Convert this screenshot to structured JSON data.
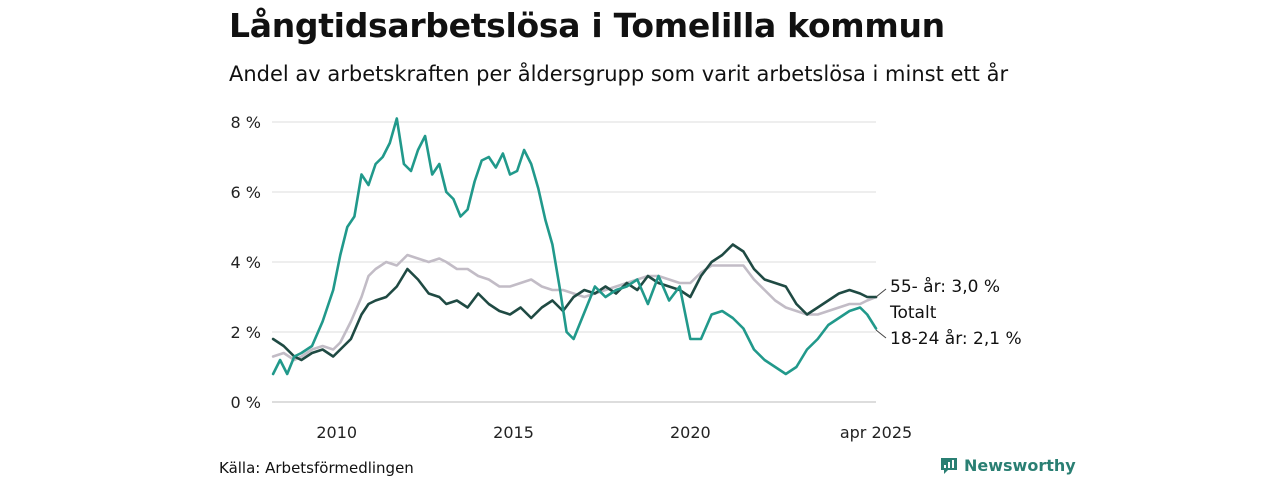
{
  "header": {
    "title": "Långtidsarbetslösa i Tomelilla kommun",
    "subtitle": "Andel av arbetskraften per åldersgrupp som varit arbetslösa i minst ett år"
  },
  "footer": {
    "source": "Källa: Arbetsförmedlingen",
    "brand": "Newsworthy"
  },
  "colors": {
    "youth": "#21998b",
    "older": "#1f4a43",
    "total": "#c2bcc6",
    "grid": "#dddddd",
    "brand": "#2a7f73"
  },
  "chart_data": {
    "type": "line",
    "title": "Långtidsarbetslösa i Tomelilla kommun",
    "subtitle": "Andel av arbetskraften per åldersgrupp som varit arbetslösa i minst ett år",
    "xlabel": "",
    "ylabel": "",
    "xlim": [
      2008.17,
      2025.25
    ],
    "ylim": [
      0,
      8
    ],
    "y_ticks": [
      0,
      2,
      4,
      6,
      8
    ],
    "y_tick_labels": [
      "0 %",
      "2 %",
      "4 %",
      "6 %",
      "8 %"
    ],
    "x_ticks": [
      2010,
      2015,
      2020,
      2025.25
    ],
    "x_tick_labels": [
      "2010",
      "2015",
      "2020",
      "apr 2025"
    ],
    "grid": true,
    "legend": "end-labels-right",
    "end_labels": [
      "55- år: 3,0 %",
      "Totalt",
      "18-24 år: 2,1 %"
    ],
    "series": [
      {
        "key": "total",
        "color": "#c2bcc6",
        "x": [
          2008.2,
          2008.5,
          2008.8,
          2009.0,
          2009.3,
          2009.6,
          2009.9,
          2010.1,
          2010.4,
          2010.7,
          2010.9,
          2011.1,
          2011.4,
          2011.7,
          2012.0,
          2012.3,
          2012.6,
          2012.9,
          2013.1,
          2013.4,
          2013.7,
          2014.0,
          2014.3,
          2014.6,
          2014.9,
          2015.2,
          2015.5,
          2015.8,
          2016.1,
          2016.4,
          2016.7,
          2017.0,
          2017.3,
          2017.6,
          2017.9,
          2018.2,
          2018.5,
          2018.8,
          2019.1,
          2019.4,
          2019.7,
          2020.0,
          2020.3,
          2020.6,
          2020.9,
          2021.2,
          2021.5,
          2021.8,
          2022.1,
          2022.4,
          2022.7,
          2023.0,
          2023.3,
          2023.6,
          2023.9,
          2024.2,
          2024.5,
          2024.8,
          2025.0,
          2025.25
        ],
        "values": [
          1.3,
          1.4,
          1.2,
          1.3,
          1.5,
          1.6,
          1.5,
          1.7,
          2.3,
          3.0,
          3.6,
          3.8,
          4.0,
          3.9,
          4.2,
          4.1,
          4.0,
          4.1,
          4.0,
          3.8,
          3.8,
          3.6,
          3.5,
          3.3,
          3.3,
          3.4,
          3.5,
          3.3,
          3.2,
          3.2,
          3.1,
          3.0,
          3.1,
          3.2,
          3.3,
          3.4,
          3.5,
          3.6,
          3.6,
          3.5,
          3.4,
          3.4,
          3.7,
          3.9,
          3.9,
          3.9,
          3.9,
          3.5,
          3.2,
          2.9,
          2.7,
          2.6,
          2.5,
          2.5,
          2.6,
          2.7,
          2.8,
          2.8,
          2.9,
          3.0
        ]
      },
      {
        "key": "older",
        "color": "#1f4a43",
        "x": [
          2008.2,
          2008.5,
          2008.8,
          2009.0,
          2009.3,
          2009.6,
          2009.9,
          2010.1,
          2010.4,
          2010.7,
          2010.9,
          2011.1,
          2011.4,
          2011.7,
          2012.0,
          2012.3,
          2012.6,
          2012.9,
          2013.1,
          2013.4,
          2013.7,
          2014.0,
          2014.3,
          2014.6,
          2014.9,
          2015.2,
          2015.5,
          2015.8,
          2016.1,
          2016.4,
          2016.7,
          2017.0,
          2017.3,
          2017.6,
          2017.9,
          2018.2,
          2018.5,
          2018.8,
          2019.1,
          2019.4,
          2019.7,
          2020.0,
          2020.3,
          2020.6,
          2020.9,
          2021.2,
          2021.5,
          2021.8,
          2022.1,
          2022.4,
          2022.7,
          2023.0,
          2023.3,
          2023.6,
          2023.9,
          2024.2,
          2024.5,
          2024.8,
          2025.0,
          2025.25
        ],
        "values": [
          1.8,
          1.6,
          1.3,
          1.2,
          1.4,
          1.5,
          1.3,
          1.5,
          1.8,
          2.5,
          2.8,
          2.9,
          3.0,
          3.3,
          3.8,
          3.5,
          3.1,
          3.0,
          2.8,
          2.9,
          2.7,
          3.1,
          2.8,
          2.6,
          2.5,
          2.7,
          2.4,
          2.7,
          2.9,
          2.6,
          3.0,
          3.2,
          3.1,
          3.3,
          3.1,
          3.4,
          3.2,
          3.6,
          3.4,
          3.3,
          3.2,
          3.0,
          3.6,
          4.0,
          4.2,
          4.5,
          4.3,
          3.8,
          3.5,
          3.4,
          3.3,
          2.8,
          2.5,
          2.7,
          2.9,
          3.1,
          3.2,
          3.1,
          3.0,
          3.0
        ]
      },
      {
        "key": "youth",
        "color": "#21998b",
        "x": [
          2008.2,
          2008.4,
          2008.6,
          2008.8,
          2009.0,
          2009.3,
          2009.6,
          2009.9,
          2010.1,
          2010.3,
          2010.5,
          2010.7,
          2010.9,
          2011.1,
          2011.3,
          2011.5,
          2011.7,
          2011.9,
          2012.1,
          2012.3,
          2012.5,
          2012.7,
          2012.9,
          2013.1,
          2013.3,
          2013.5,
          2013.7,
          2013.9,
          2014.1,
          2014.3,
          2014.5,
          2014.7,
          2014.9,
          2015.1,
          2015.3,
          2015.5,
          2015.7,
          2015.9,
          2016.1,
          2016.3,
          2016.5,
          2016.7,
          2016.9,
          2017.1,
          2017.3,
          2017.6,
          2017.9,
          2018.2,
          2018.5,
          2018.8,
          2019.1,
          2019.4,
          2019.7,
          2020.0,
          2020.3,
          2020.6,
          2020.9,
          2021.2,
          2021.5,
          2021.8,
          2022.1,
          2022.4,
          2022.7,
          2023.0,
          2023.3,
          2023.6,
          2023.9,
          2024.2,
          2024.5,
          2024.8,
          2025.0,
          2025.25
        ],
        "values": [
          0.8,
          1.2,
          0.8,
          1.3,
          1.4,
          1.6,
          2.3,
          3.2,
          4.2,
          5.0,
          5.3,
          6.5,
          6.2,
          6.8,
          7.0,
          7.4,
          8.1,
          6.8,
          6.6,
          7.2,
          7.6,
          6.5,
          6.8,
          6.0,
          5.8,
          5.3,
          5.5,
          6.3,
          6.9,
          7.0,
          6.7,
          7.1,
          6.5,
          6.6,
          7.2,
          6.8,
          6.1,
          5.2,
          4.5,
          3.3,
          2.0,
          1.8,
          2.3,
          2.8,
          3.3,
          3.0,
          3.2,
          3.3,
          3.5,
          2.8,
          3.6,
          2.9,
          3.3,
          1.8,
          1.8,
          2.5,
          2.6,
          2.4,
          2.1,
          1.5,
          1.2,
          1.0,
          0.8,
          1.0,
          1.5,
          1.8,
          2.2,
          2.4,
          2.6,
          2.7,
          2.5,
          2.1
        ]
      }
    ]
  }
}
